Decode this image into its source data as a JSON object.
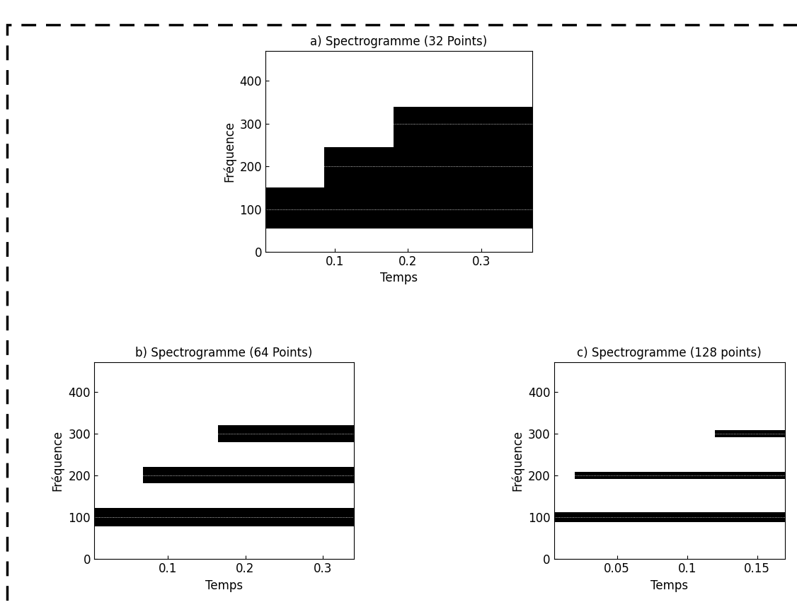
{
  "chart_data": [
    {
      "type": "spectrogram",
      "title": "a) Spectrogramme (32 Points)",
      "x_label": "Temps",
      "y_label": "Fréquence",
      "xlim": [
        0.005,
        0.37
      ],
      "xticks": [
        0.1,
        0.2,
        0.3
      ],
      "ylim": [
        0,
        470
      ],
      "yticks": [
        0,
        100,
        200,
        300,
        400
      ],
      "color": "#000000",
      "bands": [
        {
          "frequency": 100,
          "start": 0.005,
          "end": 0.37,
          "low": 55,
          "high": 150
        },
        {
          "frequency": 200,
          "start": 0.085,
          "end": 0.37,
          "low": 150,
          "high": 245
        },
        {
          "frequency": 300,
          "start": 0.18,
          "end": 0.37,
          "low": 245,
          "high": 340
        }
      ]
    },
    {
      "type": "spectrogram",
      "title": "b) Spectrogramme (64 Points)",
      "x_label": "Temps",
      "y_label": "Fréquence",
      "xlim": [
        0.005,
        0.34
      ],
      "xticks": [
        0.1,
        0.2,
        0.3
      ],
      "ylim": [
        0,
        470
      ],
      "yticks": [
        0,
        100,
        200,
        300,
        400
      ],
      "color": "#000000",
      "bands": [
        {
          "frequency": 100,
          "start": 0.005,
          "end": 0.34,
          "low": 78,
          "high": 122
        },
        {
          "frequency": 200,
          "start": 0.068,
          "end": 0.34,
          "low": 182,
          "high": 220
        },
        {
          "frequency": 300,
          "start": 0.165,
          "end": 0.34,
          "low": 280,
          "high": 320
        }
      ]
    },
    {
      "type": "spectrogram",
      "title": "c) Spectrogramme (128 points)",
      "x_label": "Temps",
      "y_label": "Fréquence",
      "xlim": [
        0.005,
        0.17
      ],
      "xticks": [
        0.05,
        0.1,
        0.15
      ],
      "ylim": [
        0,
        470
      ],
      "yticks": [
        0,
        100,
        200,
        300,
        400
      ],
      "color": "#000000",
      "bands": [
        {
          "frequency": 100,
          "start": 0.005,
          "end": 0.17,
          "low": 88,
          "high": 112
        },
        {
          "frequency": 200,
          "start": 0.02,
          "end": 0.17,
          "low": 192,
          "high": 208
        },
        {
          "frequency": 300,
          "start": 0.12,
          "end": 0.17,
          "low": 292,
          "high": 308
        }
      ]
    }
  ]
}
